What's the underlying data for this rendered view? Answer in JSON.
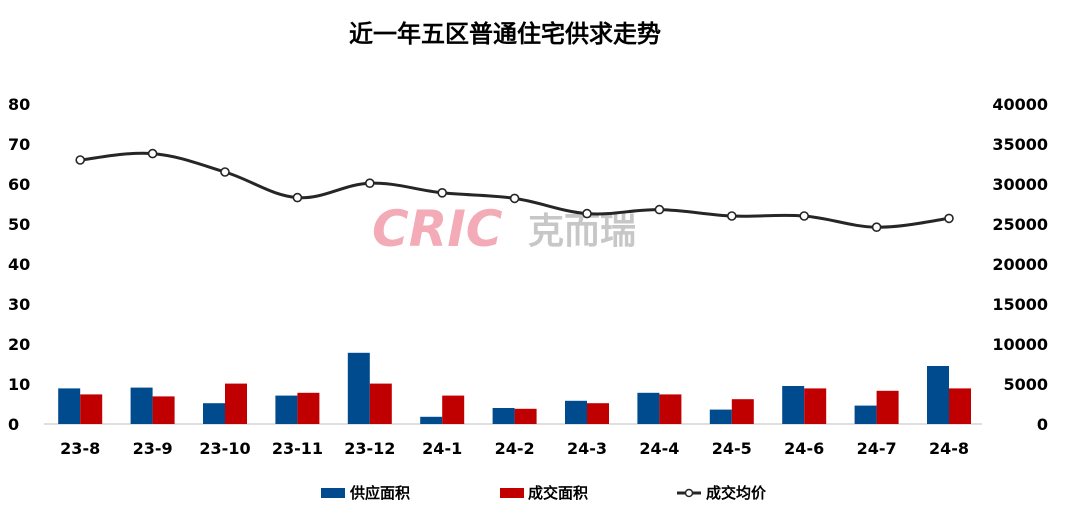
{
  "chart_data": {
    "type": "bar",
    "title": "近一年五区普通住宅供求走势",
    "categories": [
      "23-8",
      "23-9",
      "23-10",
      "23-11",
      "23-12",
      "24-1",
      "24-2",
      "24-3",
      "24-4",
      "24-5",
      "24-6",
      "24-7",
      "24-8"
    ],
    "series": [
      {
        "name": "供应面积",
        "type": "bar",
        "axis": "left",
        "color": "#004b8d",
        "values": [
          8.9,
          9.1,
          5.2,
          7.1,
          17.8,
          1.8,
          4.0,
          5.8,
          7.8,
          3.6,
          9.5,
          4.6,
          14.5
        ]
      },
      {
        "name": "成交面积",
        "type": "bar",
        "axis": "left",
        "color": "#c00000",
        "values": [
          7.4,
          6.9,
          10.1,
          7.8,
          10.1,
          7.1,
          3.8,
          5.2,
          7.4,
          6.2,
          8.9,
          8.3,
          8.9
        ]
      },
      {
        "name": "成交均价",
        "type": "line",
        "axis": "right",
        "color": "#262626",
        "values": [
          33000,
          33800,
          31500,
          28300,
          30100,
          28900,
          28200,
          26300,
          26800,
          26000,
          26000,
          24600,
          25700
        ]
      }
    ],
    "y_left": {
      "min": 0,
      "max": 80,
      "ticks": [
        "0",
        "10",
        "20",
        "30",
        "40",
        "50",
        "60",
        "70",
        "80"
      ]
    },
    "y_right": {
      "min": 0,
      "max": 40000,
      "ticks": [
        "0",
        "5000",
        "10000",
        "15000",
        "20000",
        "25000",
        "30000",
        "35000",
        "40000"
      ]
    },
    "grid": false,
    "legend": "bottom"
  },
  "watermarks": {
    "brand_latin": "CRIC",
    "brand_cn": "克而瑞"
  }
}
